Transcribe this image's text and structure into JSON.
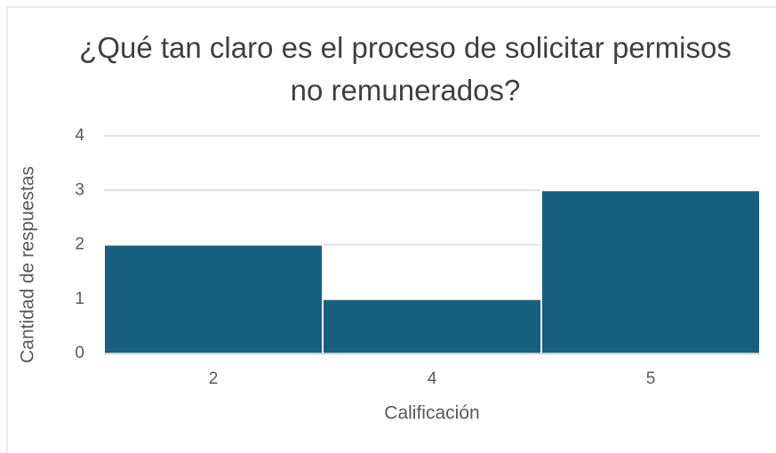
{
  "chart_data": {
    "type": "bar",
    "title": "¿Qué tan claro es el proceso de solicitar permisos no remunerados?",
    "x_label": "Calificación",
    "y_label": "Cantidad de respuestas",
    "categories": [
      "2",
      "4",
      "5"
    ],
    "values": [
      2,
      1,
      3
    ],
    "color": "#17607f",
    "ylim": [
      0,
      4
    ],
    "yticks": [
      0,
      1,
      2,
      3,
      4
    ],
    "grid": true
  }
}
